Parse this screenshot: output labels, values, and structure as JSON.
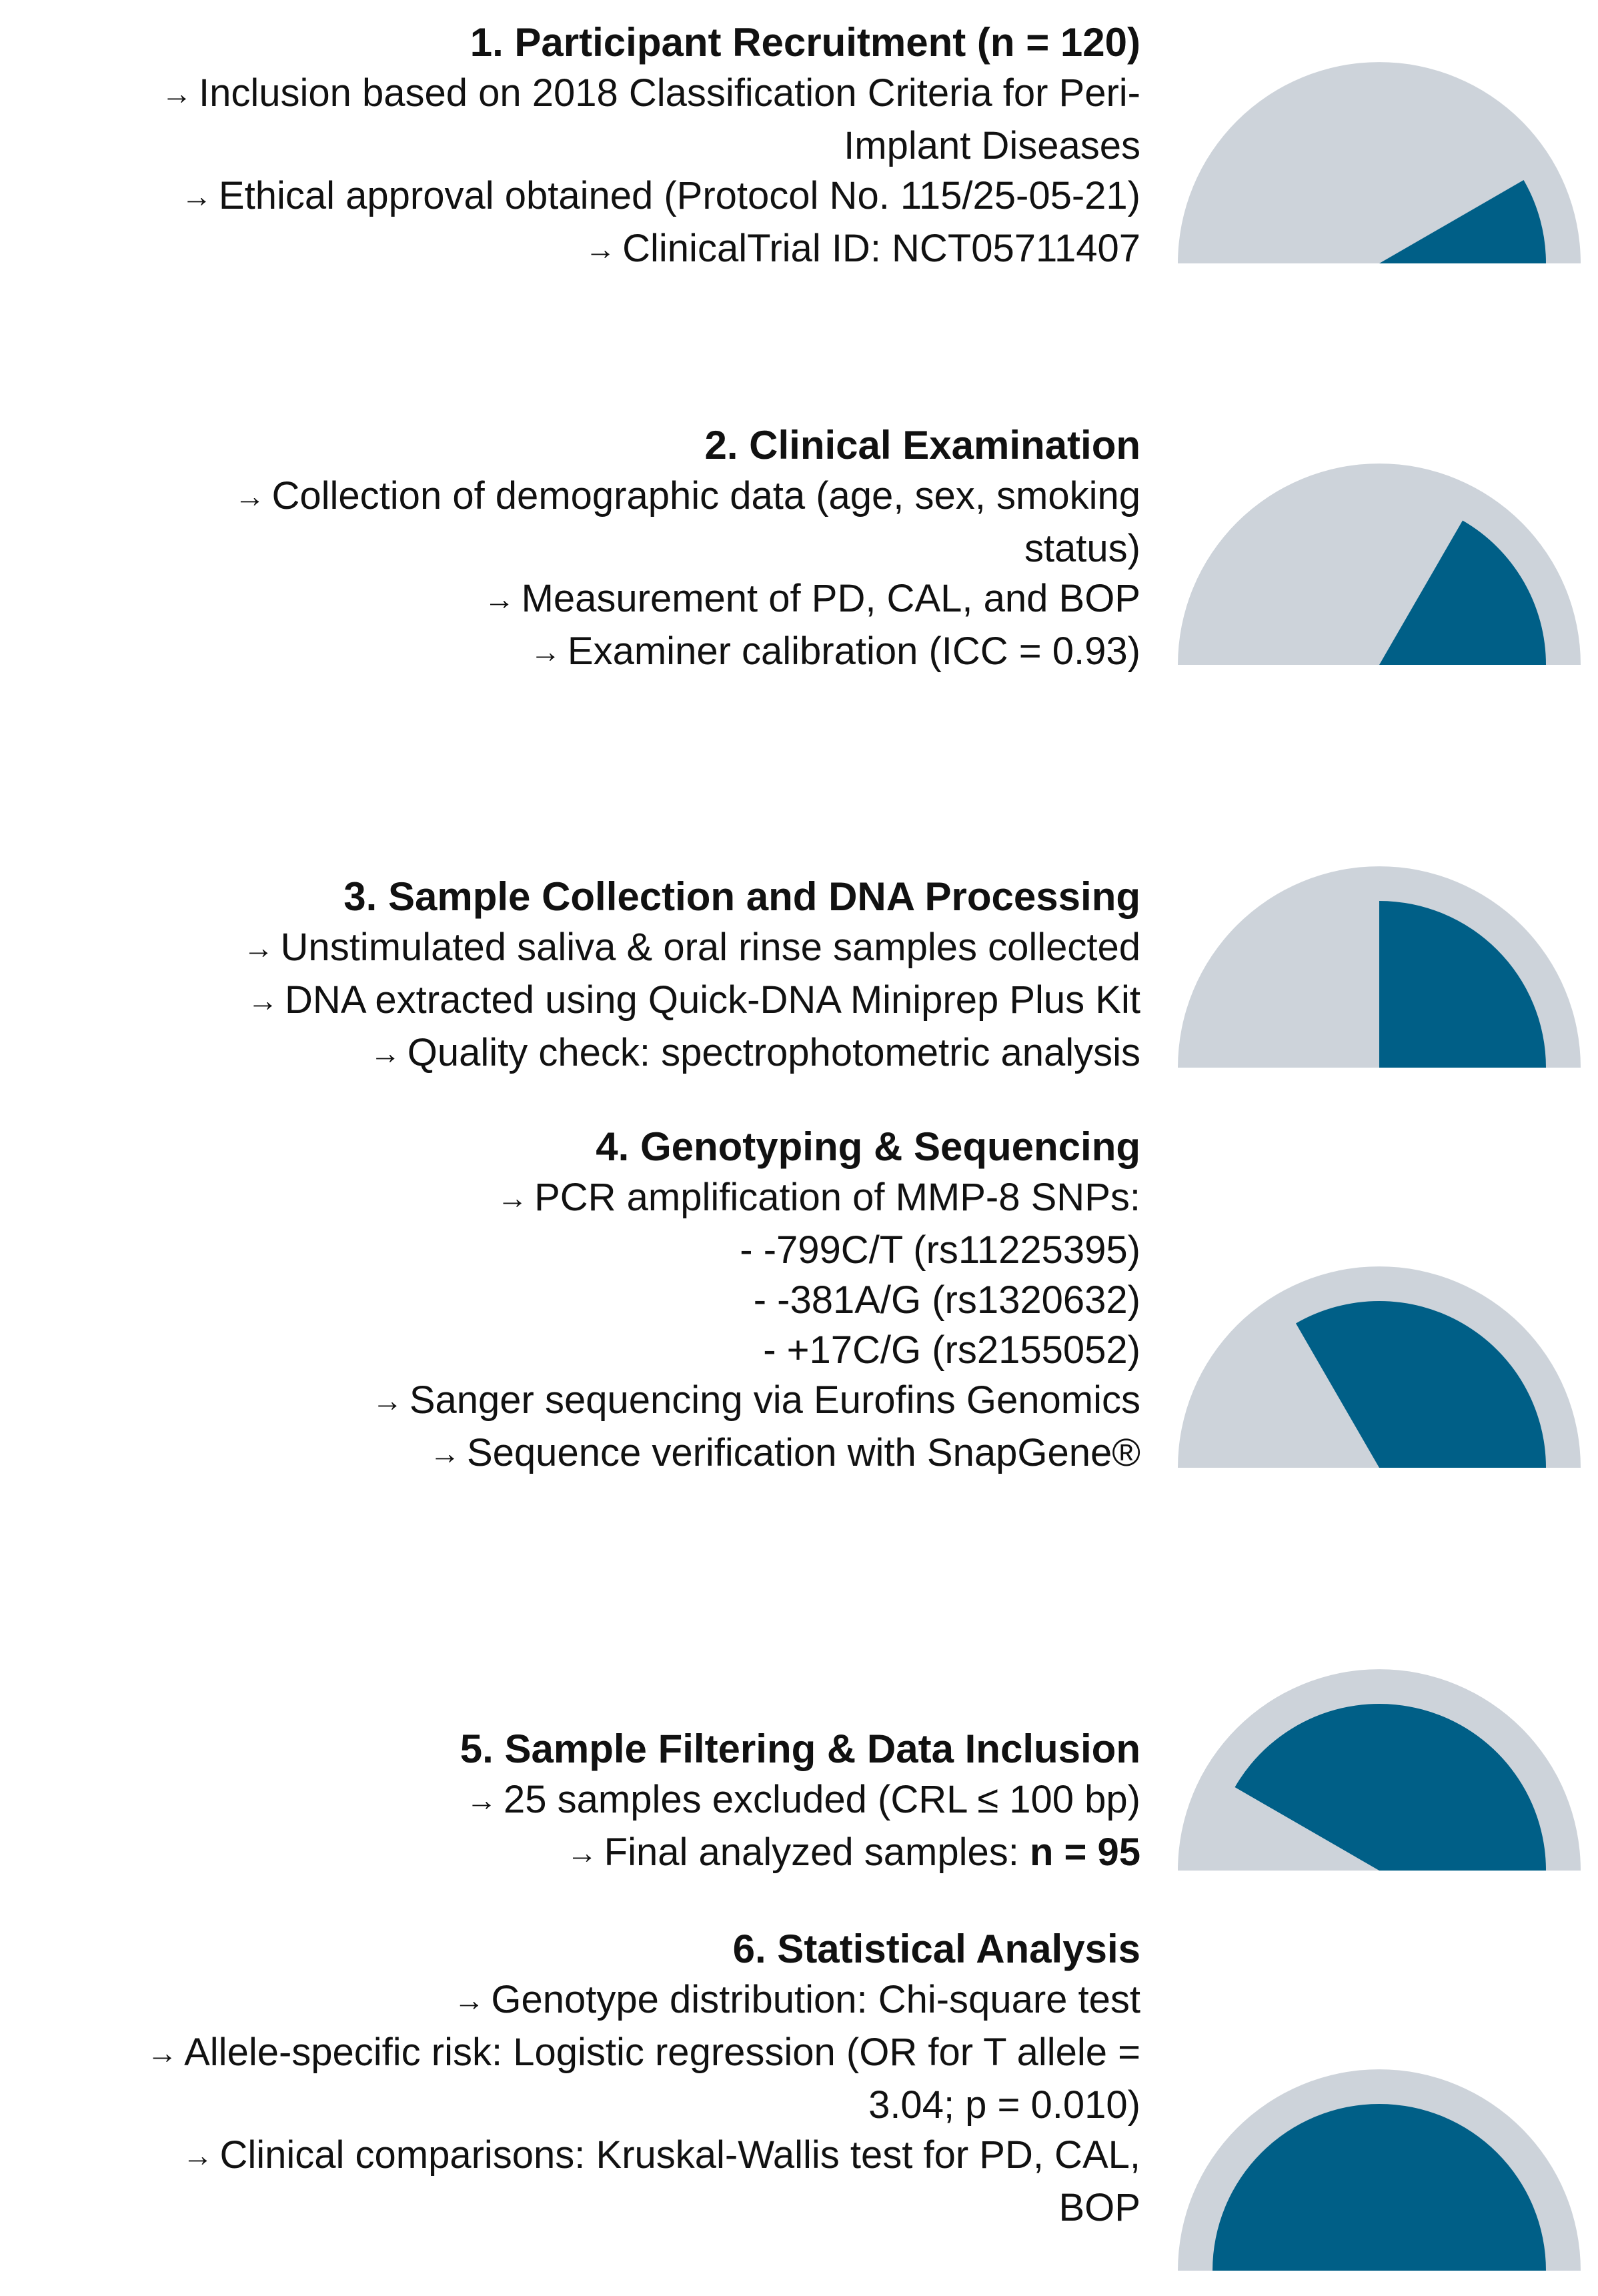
{
  "colors": {
    "gauge_track": "#cdd3da",
    "gauge_fill": "#005f87",
    "text": "#111111"
  },
  "steps": [
    {
      "title": "1. Participant Recruitment (n = 120)",
      "lines": [
        {
          "arrow": "→",
          "text": "Inclusion based on 2018 Classification Criteria for Peri-"
        },
        {
          "arrow": "",
          "text": "Implant Diseases"
        },
        {
          "arrow": "→",
          "text": "Ethical approval obtained (Protocol No. 115/25-05-21)"
        },
        {
          "arrow": "→",
          "text": "ClinicalTrial ID: NCT05711407"
        }
      ],
      "progress_fraction": 0.1667
    },
    {
      "title": "2. Clinical Examination",
      "lines": [
        {
          "arrow": "→",
          "text": "Collection of demographic data (age, sex, smoking"
        },
        {
          "arrow": "",
          "text": "status)"
        },
        {
          "arrow": "→",
          "text": "Measurement of PD, CAL, and BOP"
        },
        {
          "arrow": "→",
          "text": "Examiner calibration (ICC = 0.93)"
        }
      ],
      "progress_fraction": 0.3333
    },
    {
      "title": "3. Sample Collection and DNA Processing",
      "lines": [
        {
          "arrow": "→",
          "text": "Unstimulated saliva & oral rinse samples collected"
        },
        {
          "arrow": "→",
          "text": "DNA extracted using Quick-DNA Miniprep Plus Kit"
        },
        {
          "arrow": "→",
          "text": "Quality check: spectrophotometric analysis"
        }
      ],
      "progress_fraction": 0.5
    },
    {
      "title": "4. Genotyping & Sequencing",
      "lines": [
        {
          "arrow": "→",
          "text": "PCR amplification of MMP-8 SNPs:"
        },
        {
          "arrow": "",
          "text": "- -799C/T (rs11225395)"
        },
        {
          "arrow": "",
          "text": "- -381A/G (rs1320632)"
        },
        {
          "arrow": "",
          "text": "- +17C/G (rs2155052)"
        },
        {
          "arrow": "→",
          "text": "Sanger sequencing via Eurofins Genomics"
        },
        {
          "arrow": "→",
          "text": "Sequence verification with SnapGene®"
        }
      ],
      "progress_fraction": 0.6667
    },
    {
      "title": "5. Sample Filtering & Data Inclusion",
      "lines": [
        {
          "arrow": "→",
          "text": "25 samples excluded (CRL ≤ 100 bp)"
        },
        {
          "arrow": "→",
          "text": "Final analyzed samples: ",
          "bold": "n = 95"
        }
      ],
      "progress_fraction": 0.8333
    },
    {
      "title": "6. Statistical Analysis",
      "lines": [
        {
          "arrow": "→",
          "text": "Genotype distribution: Chi-square test"
        },
        {
          "arrow": "→",
          "text": "Allele-specific risk: Logistic regression (OR for T allele ="
        },
        {
          "arrow": "",
          "text": "3.04; p = 0.010)"
        },
        {
          "arrow": "→",
          "text": "Clinical comparisons: Kruskal-Wallis test for PD, CAL,"
        },
        {
          "arrow": "",
          "text": "BOP"
        }
      ],
      "progress_fraction": 1.0
    }
  ]
}
